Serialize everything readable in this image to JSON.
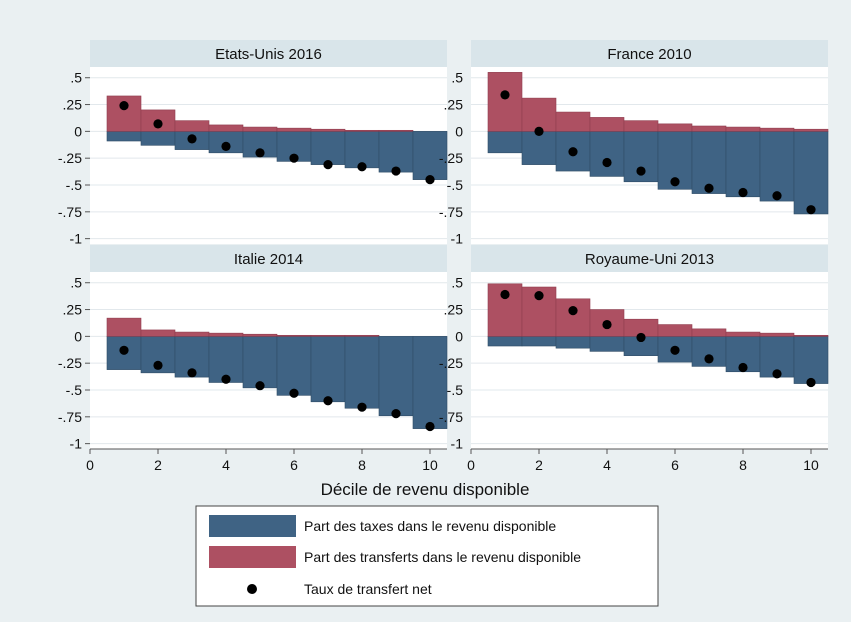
{
  "figure": {
    "xlabel": "Décile de revenu disponible"
  },
  "colors": {
    "background": "#eaf0f2",
    "panel_title_bg": "#d9e5ea",
    "plot_bg": "#ffffff",
    "grid": "#e2e8ec",
    "taxes": "#3f6384",
    "transfers": "#ad5062",
    "net": "#000000"
  },
  "legend": {
    "items": [
      {
        "label": "Part des taxes dans le revenu disponible",
        "kind": "bar",
        "color": "#3f6384"
      },
      {
        "label": "Part  des transferts dans le revenu disponible",
        "kind": "bar",
        "color": "#ad5062"
      },
      {
        "label": "Taux de transfert net",
        "kind": "dot",
        "color": "#000000"
      }
    ]
  },
  "chart_data": [
    {
      "type": "bar",
      "title": "Etats-Unis 2016",
      "x": [
        1,
        2,
        3,
        4,
        5,
        6,
        7,
        8,
        9,
        10
      ],
      "xlim": [
        0,
        10.5
      ],
      "ylim": [
        -1.05,
        0.6
      ],
      "xticks": [
        "0",
        "2",
        "4",
        "6",
        "8",
        "10"
      ],
      "yticks": [
        ".5",
        ".25",
        "0",
        "-.25",
        "-.5",
        "-.75",
        "-1"
      ],
      "series": [
        {
          "name": "Part des taxes dans le revenu disponible",
          "values": [
            -0.09,
            -0.13,
            -0.17,
            -0.2,
            -0.24,
            -0.28,
            -0.31,
            -0.34,
            -0.38,
            -0.45
          ]
        },
        {
          "name": "Part  des transferts dans le revenu disponible",
          "values": [
            0.33,
            0.2,
            0.1,
            0.06,
            0.04,
            0.03,
            0.02,
            0.01,
            0.01,
            0.0
          ]
        },
        {
          "name": "Taux de transfert net",
          "values": [
            0.24,
            0.07,
            -0.07,
            -0.14,
            -0.2,
            -0.25,
            -0.31,
            -0.33,
            -0.37,
            -0.45
          ]
        }
      ]
    },
    {
      "type": "bar",
      "title": "France 2010",
      "x": [
        1,
        2,
        3,
        4,
        5,
        6,
        7,
        8,
        9,
        10
      ],
      "xlim": [
        0,
        10.5
      ],
      "ylim": [
        -1.05,
        0.6
      ],
      "xticks": [
        "0",
        "2",
        "4",
        "6",
        "8",
        "10"
      ],
      "yticks": [
        ".5",
        ".25",
        "0",
        "-.25",
        "-.5",
        "-.75",
        "-1"
      ],
      "series": [
        {
          "name": "Part des taxes dans le revenu disponible",
          "values": [
            -0.2,
            -0.31,
            -0.37,
            -0.42,
            -0.47,
            -0.54,
            -0.58,
            -0.61,
            -0.65,
            -0.77
          ]
        },
        {
          "name": "Part  des transferts dans le revenu disponible",
          "values": [
            0.55,
            0.31,
            0.18,
            0.13,
            0.1,
            0.07,
            0.05,
            0.04,
            0.03,
            0.02
          ]
        },
        {
          "name": "Taux de transfert net",
          "values": [
            0.34,
            0.0,
            -0.19,
            -0.29,
            -0.37,
            -0.47,
            -0.53,
            -0.57,
            -0.6,
            -0.73
          ]
        }
      ]
    },
    {
      "type": "bar",
      "title": "Italie 2014",
      "x": [
        1,
        2,
        3,
        4,
        5,
        6,
        7,
        8,
        9,
        10
      ],
      "xlim": [
        0,
        10.5
      ],
      "ylim": [
        -1.05,
        0.6
      ],
      "xticks": [
        "0",
        "2",
        "4",
        "6",
        "8",
        "10"
      ],
      "yticks": [
        ".5",
        ".25",
        "0",
        "-.25",
        "-.5",
        "-.75",
        "-1"
      ],
      "series": [
        {
          "name": "Part des taxes dans le revenu disponible",
          "values": [
            -0.31,
            -0.34,
            -0.38,
            -0.43,
            -0.48,
            -0.55,
            -0.61,
            -0.67,
            -0.74,
            -0.86
          ]
        },
        {
          "name": "Part  des transferts dans le revenu disponible",
          "values": [
            0.17,
            0.06,
            0.04,
            0.03,
            0.02,
            0.01,
            0.01,
            0.01,
            0.0,
            0.0
          ]
        },
        {
          "name": "Taux de transfert net",
          "values": [
            -0.13,
            -0.27,
            -0.34,
            -0.4,
            -0.46,
            -0.53,
            -0.6,
            -0.66,
            -0.72,
            -0.84
          ]
        }
      ]
    },
    {
      "type": "bar",
      "title": "Royaume-Uni 2013",
      "x": [
        1,
        2,
        3,
        4,
        5,
        6,
        7,
        8,
        9,
        10
      ],
      "xlim": [
        0,
        10.5
      ],
      "ylim": [
        -1.05,
        0.6
      ],
      "xticks": [
        "0",
        "2",
        "4",
        "6",
        "8",
        "10"
      ],
      "yticks": [
        ".5",
        ".25",
        "0",
        "-.25",
        "-.5",
        "-.75",
        "-1"
      ],
      "series": [
        {
          "name": "Part des taxes dans le revenu disponible",
          "values": [
            -0.09,
            -0.09,
            -0.11,
            -0.14,
            -0.18,
            -0.24,
            -0.28,
            -0.33,
            -0.38,
            -0.44
          ]
        },
        {
          "name": "Part  des transferts dans le revenu disponible",
          "values": [
            0.49,
            0.46,
            0.35,
            0.25,
            0.16,
            0.11,
            0.07,
            0.04,
            0.03,
            0.01
          ]
        },
        {
          "name": "Taux de transfert net",
          "values": [
            0.39,
            0.38,
            0.24,
            0.11,
            -0.01,
            -0.13,
            -0.21,
            -0.29,
            -0.35,
            -0.43
          ]
        }
      ]
    }
  ]
}
